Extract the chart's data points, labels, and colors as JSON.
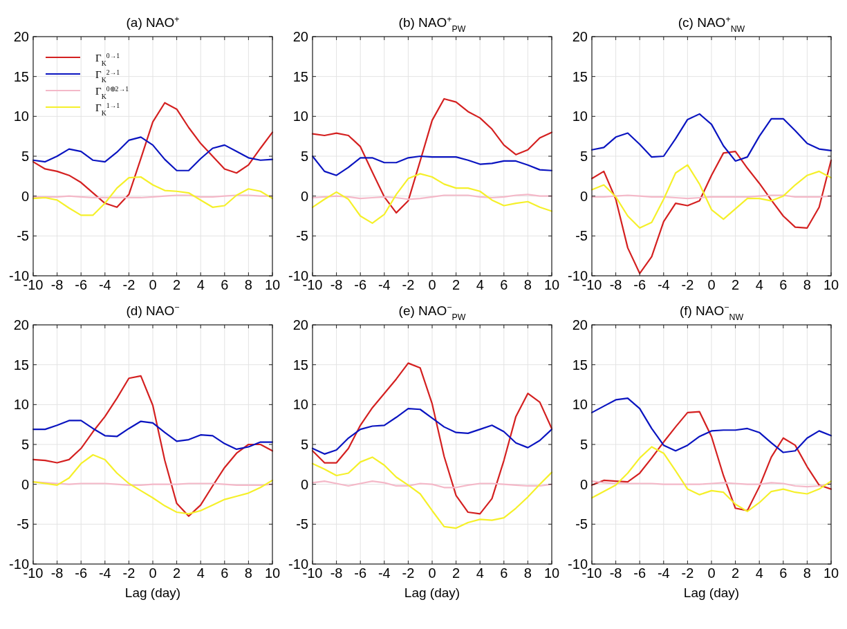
{
  "chart_data": [
    {
      "type": "line",
      "title": "(a) NAO$^{+}$",
      "x": [
        -10,
        -9,
        -8,
        -7,
        -6,
        -5,
        -4,
        -3,
        -2,
        -1,
        0,
        1,
        2,
        3,
        4,
        5,
        6,
        7,
        8,
        9,
        10
      ],
      "xlim": [
        -10,
        10
      ],
      "ylim": [
        -10,
        20
      ],
      "xticks": [
        -10,
        -8,
        -6,
        -4,
        -2,
        0,
        2,
        4,
        6,
        8,
        10
      ],
      "yticks": [
        -10,
        -5,
        0,
        5,
        10,
        15,
        20
      ],
      "grid": true,
      "legend": "top left",
      "line_style": "solid",
      "series": [
        {
          "name": "Γ$_{K}$$^{0→1}$",
          "color": "#d42020",
          "values": [
            4.3,
            3.4,
            3.1,
            2.6,
            1.7,
            0.4,
            -0.9,
            -1.4,
            0.2,
            4.7,
            9.3,
            11.7,
            10.9,
            8.6,
            6.6,
            5.0,
            3.4,
            2.9,
            3.9,
            6.0,
            8.0
          ]
        },
        {
          "name": "Γ$_{K}$$^{2→1}$",
          "color": "#0a14c0",
          "values": [
            4.5,
            4.3,
            5.0,
            5.9,
            5.6,
            4.5,
            4.3,
            5.5,
            7.0,
            7.4,
            6.4,
            4.6,
            3.2,
            3.2,
            4.7,
            6.0,
            6.4,
            5.6,
            4.8,
            4.5,
            4.6
          ]
        },
        {
          "name": "Γ$_{K}$$^{0⊕2→1}$",
          "color": "#f4b8c8",
          "values": [
            -0.1,
            -0.1,
            -0.1,
            0,
            -0.1,
            -0.2,
            -0.2,
            -0.2,
            -0.2,
            -0.2,
            -0.1,
            0,
            0.1,
            0.1,
            -0.1,
            -0.1,
            0,
            0.1,
            0.1,
            0,
            0
          ]
        },
        {
          "name": "Γ$_{K}$$^{1→1}$",
          "color": "#f5f02a",
          "values": [
            -0.3,
            -0.2,
            -0.5,
            -1.5,
            -2.4,
            -2.4,
            -0.9,
            1.0,
            2.3,
            2.4,
            1.4,
            0.7,
            0.6,
            0.4,
            -0.5,
            -1.4,
            -1.2,
            0.1,
            0.9,
            0.6,
            -0.3
          ]
        }
      ]
    },
    {
      "type": "line",
      "title": "(b) NAO$^{+}$$_{PW}$",
      "x": [
        -10,
        -9,
        -8,
        -7,
        -6,
        -5,
        -4,
        -3,
        -2,
        -1,
        0,
        1,
        2,
        3,
        4,
        5,
        6,
        7,
        8,
        9,
        10
      ],
      "xlim": [
        -10,
        10
      ],
      "ylim": [
        -10,
        20
      ],
      "xticks": [
        -10,
        -8,
        -6,
        -4,
        -2,
        0,
        2,
        4,
        6,
        8,
        10
      ],
      "yticks": [
        -10,
        -5,
        0,
        5,
        10,
        15,
        20
      ],
      "grid": true,
      "line_style": "solid",
      "series": [
        {
          "color": "#d42020",
          "values": [
            7.8,
            7.6,
            7.9,
            7.6,
            6.2,
            3.0,
            -0.1,
            -2.1,
            -0.6,
            4.4,
            9.5,
            12.2,
            11.8,
            10.6,
            9.8,
            8.4,
            6.4,
            5.2,
            5.8,
            7.3,
            8.0
          ]
        },
        {
          "color": "#0a14c0",
          "values": [
            5.0,
            3.1,
            2.6,
            3.6,
            4.8,
            4.8,
            4.2,
            4.2,
            4.8,
            5.0,
            4.9,
            4.9,
            4.9,
            4.5,
            4.0,
            4.1,
            4.4,
            4.4,
            3.9,
            3.3,
            3.2
          ]
        },
        {
          "color": "#f4b8c8",
          "values": [
            -0.2,
            -0.1,
            0,
            -0.1,
            -0.3,
            -0.2,
            -0.1,
            -0.2,
            -0.4,
            -0.3,
            -0.1,
            0.1,
            0.1,
            0.1,
            -0.1,
            -0.2,
            -0.1,
            0.1,
            0.2,
            0,
            0
          ]
        },
        {
          "color": "#f5f02a",
          "values": [
            -1.4,
            -0.4,
            0.5,
            -0.4,
            -2.5,
            -3.4,
            -2.3,
            0.2,
            2.2,
            2.8,
            2.4,
            1.5,
            1.0,
            1.0,
            0.6,
            -0.5,
            -1.2,
            -0.9,
            -0.7,
            -1.4,
            -1.9
          ]
        }
      ]
    },
    {
      "type": "line",
      "title": "(c) NAO$^{+}$$_{NW}$",
      "x": [
        -10,
        -9,
        -8,
        -7,
        -6,
        -5,
        -4,
        -3,
        -2,
        -1,
        0,
        1,
        2,
        3,
        4,
        5,
        6,
        7,
        8,
        9,
        10
      ],
      "xlim": [
        -10,
        10
      ],
      "ylim": [
        -10,
        20
      ],
      "xticks": [
        -10,
        -8,
        -6,
        -4,
        -2,
        0,
        2,
        4,
        6,
        8,
        10
      ],
      "yticks": [
        -10,
        -5,
        0,
        5,
        10,
        15,
        20
      ],
      "grid": true,
      "line_style": "solid",
      "series": [
        {
          "color": "#d42020",
          "values": [
            2.2,
            3.1,
            -0.4,
            -6.5,
            -9.7,
            -7.6,
            -3.2,
            -0.9,
            -1.2,
            -0.6,
            2.6,
            5.4,
            5.6,
            3.5,
            1.6,
            -0.5,
            -2.5,
            -3.9,
            -4.0,
            -1.4,
            4.5
          ]
        },
        {
          "color": "#0a14c0",
          "values": [
            5.8,
            6.1,
            7.4,
            7.9,
            6.5,
            4.9,
            5.0,
            7.2,
            9.6,
            10.3,
            9.0,
            6.3,
            4.4,
            4.9,
            7.5,
            9.7,
            9.7,
            8.2,
            6.6,
            5.9,
            5.7
          ]
        },
        {
          "color": "#f4b8c8",
          "values": [
            -0.1,
            -0.1,
            0,
            0.1,
            0,
            -0.1,
            -0.1,
            -0.2,
            -0.3,
            -0.2,
            -0.1,
            -0.1,
            -0.1,
            -0.1,
            0,
            0.1,
            0.1,
            -0.1,
            -0.1,
            -0.1,
            0
          ]
        },
        {
          "color": "#f5f02a",
          "values": [
            0.8,
            1.4,
            -0.1,
            -2.5,
            -4.0,
            -3.3,
            -0.4,
            2.9,
            3.9,
            1.5,
            -1.7,
            -2.9,
            -1.6,
            -0.3,
            -0.3,
            -0.6,
            0,
            1.4,
            2.6,
            3.1,
            2.3
          ]
        }
      ]
    },
    {
      "type": "line",
      "title": "(d) NAO$^{−}$",
      "xlabel": "Lag (day)",
      "x": [
        -10,
        -9,
        -8,
        -7,
        -6,
        -5,
        -4,
        -3,
        -2,
        -1,
        0,
        1,
        2,
        3,
        4,
        5,
        6,
        7,
        8,
        9,
        10
      ],
      "xlim": [
        -10,
        10
      ],
      "ylim": [
        -10,
        20
      ],
      "xticks": [
        -10,
        -8,
        -6,
        -4,
        -2,
        0,
        2,
        4,
        6,
        8,
        10
      ],
      "yticks": [
        -10,
        -5,
        0,
        5,
        10,
        15,
        20
      ],
      "grid": true,
      "line_style": "solid",
      "series": [
        {
          "color": "#d42020",
          "values": [
            3.1,
            3.0,
            2.7,
            3.1,
            4.5,
            6.6,
            8.5,
            10.8,
            13.3,
            13.6,
            9.9,
            3.0,
            -2.4,
            -4.0,
            -2.6,
            -0.2,
            2.1,
            3.9,
            5.0,
            5.0,
            4.2
          ]
        },
        {
          "color": "#0a14c0",
          "values": [
            6.9,
            6.9,
            7.4,
            8.0,
            8.0,
            7.0,
            6.1,
            6.0,
            7.0,
            7.9,
            7.7,
            6.5,
            5.4,
            5.6,
            6.2,
            6.1,
            5.1,
            4.4,
            4.7,
            5.3,
            5.3
          ]
        },
        {
          "color": "#f4b8c8",
          "values": [
            0.3,
            0.2,
            0.1,
            0,
            0.1,
            0.1,
            0.1,
            0,
            -0.1,
            -0.1,
            0,
            0,
            0,
            0.1,
            0.1,
            0.1,
            0,
            -0.1,
            -0.1,
            -0.1,
            0
          ]
        },
        {
          "color": "#f5f02a",
          "values": [
            0.3,
            0.1,
            -0.1,
            0.8,
            2.6,
            3.7,
            3.1,
            1.4,
            0.1,
            -0.8,
            -1.7,
            -2.7,
            -3.5,
            -3.7,
            -3.3,
            -2.6,
            -1.9,
            -1.5,
            -1.1,
            -0.4,
            0.5
          ]
        }
      ]
    },
    {
      "type": "line",
      "title": "(e) NAO$^{−}$$_{PW}$",
      "xlabel": "Lag (day)",
      "x": [
        -10,
        -9,
        -8,
        -7,
        -6,
        -5,
        -4,
        -3,
        -2,
        -1,
        0,
        1,
        2,
        3,
        4,
        5,
        6,
        7,
        8,
        9,
        10
      ],
      "xlim": [
        -10,
        10
      ],
      "ylim": [
        -10,
        20
      ],
      "xticks": [
        -10,
        -8,
        -6,
        -4,
        -2,
        0,
        2,
        4,
        6,
        8,
        10
      ],
      "yticks": [
        -10,
        -5,
        0,
        5,
        10,
        15,
        20
      ],
      "grid": true,
      "line_style": "solid",
      "series": [
        {
          "color": "#d42020",
          "values": [
            4.2,
            2.7,
            2.7,
            4.5,
            7.4,
            9.6,
            11.4,
            13.2,
            15.2,
            14.6,
            10.1,
            3.5,
            -1.4,
            -3.5,
            -3.7,
            -1.8,
            3.0,
            8.5,
            11.4,
            10.3,
            7.0
          ]
        },
        {
          "color": "#0a14c0",
          "values": [
            4.5,
            3.8,
            4.3,
            5.8,
            6.9,
            7.3,
            7.4,
            8.4,
            9.5,
            9.4,
            8.3,
            7.2,
            6.5,
            6.4,
            6.9,
            7.4,
            6.6,
            5.2,
            4.6,
            5.5,
            6.9
          ]
        },
        {
          "color": "#f4b8c8",
          "values": [
            0.2,
            0.4,
            0.1,
            -0.2,
            0.1,
            0.4,
            0.2,
            -0.2,
            -0.2,
            0.1,
            0,
            -0.4,
            -0.4,
            -0.1,
            0.1,
            0.1,
            0,
            -0.1,
            -0.2,
            -0.2,
            0
          ]
        },
        {
          "color": "#f5f02a",
          "values": [
            2.6,
            1.9,
            1.1,
            1.4,
            2.8,
            3.4,
            2.4,
            0.9,
            -0.1,
            -1.2,
            -3.3,
            -5.3,
            -5.5,
            -4.8,
            -4.4,
            -4.5,
            -4.2,
            -3.0,
            -1.6,
            0,
            1.5
          ]
        }
      ]
    },
    {
      "type": "line",
      "title": "(f) NAO$^{−}$$_{NW}$",
      "xlabel": "Lag (day)",
      "x": [
        -10,
        -9,
        -8,
        -7,
        -6,
        -5,
        -4,
        -3,
        -2,
        -1,
        0,
        1,
        2,
        3,
        4,
        5,
        6,
        7,
        8,
        9,
        10
      ],
      "xlim": [
        -10,
        10
      ],
      "ylim": [
        -10,
        20
      ],
      "xticks": [
        -10,
        -8,
        -6,
        -4,
        -2,
        0,
        2,
        4,
        6,
        8,
        10
      ],
      "yticks": [
        -10,
        -5,
        0,
        5,
        10,
        15,
        20
      ],
      "grid": true,
      "line_style": "solid",
      "series": [
        {
          "color": "#d42020",
          "values": [
            -0.1,
            0.5,
            0.4,
            0.3,
            1.4,
            3.3,
            5.3,
            7.2,
            9.0,
            9.1,
            6.0,
            1.1,
            -3.0,
            -3.3,
            -0.3,
            3.4,
            5.8,
            4.9,
            2.2,
            -0.1,
            -0.6
          ]
        },
        {
          "color": "#0a14c0",
          "values": [
            9.0,
            9.8,
            10.6,
            10.8,
            9.5,
            7.0,
            4.9,
            4.2,
            4.9,
            6.0,
            6.7,
            6.8,
            6.8,
            7.0,
            6.5,
            5.2,
            4.0,
            4.2,
            5.8,
            6.7,
            6.1
          ]
        },
        {
          "color": "#f4b8c8",
          "values": [
            0.4,
            0.2,
            0.1,
            0.1,
            0.1,
            0.1,
            0,
            0,
            0,
            0,
            0.1,
            0.2,
            0.1,
            0,
            0,
            0.2,
            0.1,
            -0.2,
            -0.3,
            -0.2,
            0.1
          ]
        },
        {
          "color": "#f5f02a",
          "values": [
            -1.7,
            -0.9,
            -0.1,
            1.4,
            3.3,
            4.7,
            3.9,
            1.7,
            -0.6,
            -1.3,
            -0.8,
            -1.0,
            -2.5,
            -3.4,
            -2.3,
            -0.9,
            -0.6,
            -1.0,
            -1.2,
            -0.6,
            0.4
          ]
        }
      ]
    }
  ]
}
